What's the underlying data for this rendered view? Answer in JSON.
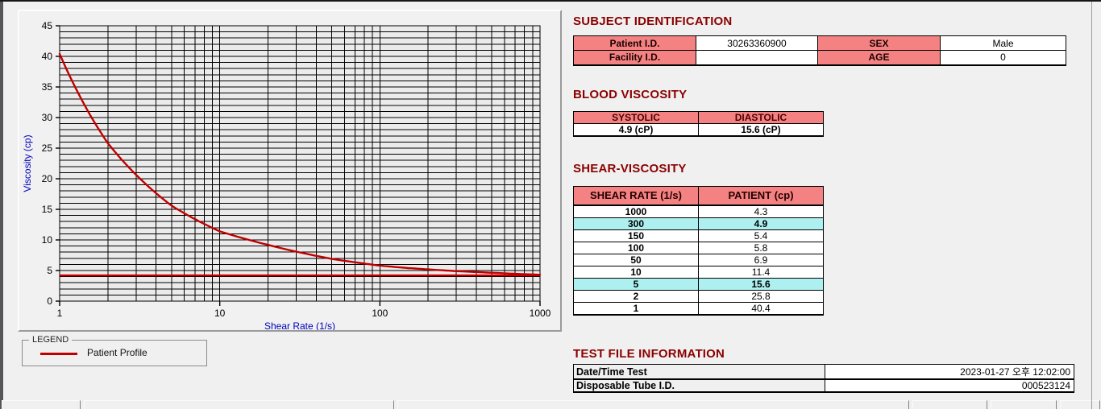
{
  "subject_identification": {
    "title": "SUBJECT IDENTIFICATION",
    "rows": [
      {
        "label1": "Patient I.D.",
        "value1": "30263360900",
        "label2": "SEX",
        "value2": "Male"
      },
      {
        "label1": "Facility I.D.",
        "value1": "",
        "label2": "AGE",
        "value2": "0"
      }
    ]
  },
  "blood_viscosity": {
    "title": "BLOOD VISCOSITY",
    "headers": [
      "SYSTOLIC",
      "DIASTOLIC"
    ],
    "values": [
      "4.9 (cP)",
      "15.6 (cP)"
    ]
  },
  "shear_viscosity": {
    "title": "SHEAR-VISCOSITY",
    "headers": [
      "SHEAR RATE (1/s)",
      "PATIENT (cp)"
    ],
    "rows": [
      {
        "rate": "1000",
        "value": "4.3",
        "highlight": false
      },
      {
        "rate": "300",
        "value": "4.9",
        "highlight": true
      },
      {
        "rate": "150",
        "value": "5.4",
        "highlight": false
      },
      {
        "rate": "100",
        "value": "5.8",
        "highlight": false
      },
      {
        "rate": "50",
        "value": "6.9",
        "highlight": false
      },
      {
        "rate": "10",
        "value": "11.4",
        "highlight": false
      },
      {
        "rate": "5",
        "value": "15.6",
        "highlight": true
      },
      {
        "rate": "2",
        "value": "25.8",
        "highlight": false
      },
      {
        "rate": "1",
        "value": "40.4",
        "highlight": false
      }
    ],
    "highlight_color": "#aef0f0"
  },
  "test_file": {
    "title": "TEST FILE INFORMATION",
    "rows": [
      {
        "label": "Date/Time Test",
        "value": "2023-01-27  오후 12:02:00"
      },
      {
        "label": "Disposable Tube I.D.",
        "value": "000523124"
      }
    ]
  },
  "legend": {
    "box_label": "LEGEND",
    "series_label": "Patient Profile"
  },
  "colors": {
    "section_title": "#8b0000",
    "table_header_bg": "#f48282",
    "highlight_bg": "#aef0f0",
    "curve": "#c00000",
    "axis_label": "#0000bb",
    "grid": "#000000",
    "plot_bg": "#ebebeb"
  },
  "chart_data": {
    "type": "line",
    "title": "",
    "xlabel": "Shear Rate (1/s)",
    "ylabel": "Viscosity (cp)",
    "x_scale": "log",
    "xlim": [
      1,
      1000
    ],
    "ylim": [
      0,
      45
    ],
    "x_major_ticks": [
      1,
      10,
      100,
      1000
    ],
    "y_major_ticks": [
      0,
      5,
      10,
      15,
      20,
      25,
      30,
      35,
      40,
      45
    ],
    "y_minor_step": 1,
    "grid": true,
    "legend_position": "below-left",
    "series": [
      {
        "name": "Patient Profile",
        "color": "#c00000",
        "x": [
          1,
          2,
          5,
          10,
          50,
          100,
          150,
          300,
          1000
        ],
        "y": [
          40.4,
          25.8,
          15.6,
          11.4,
          6.9,
          5.8,
          5.4,
          4.9,
          4.3
        ]
      },
      {
        "name": "asymptote-line",
        "type": "hline",
        "y": 4.2,
        "color": "#c00000"
      }
    ]
  }
}
